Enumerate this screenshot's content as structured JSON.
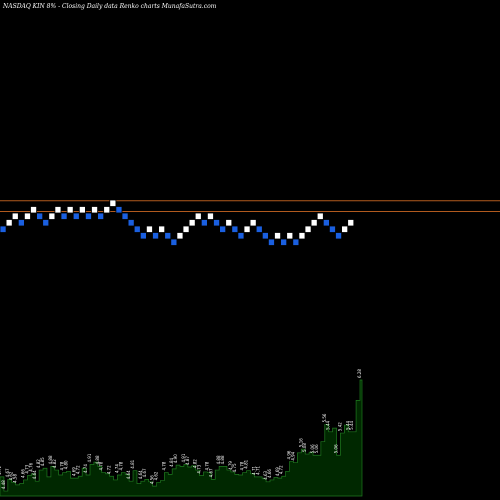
{
  "header": {
    "left": "NASDAQ KIN  8% -",
    "right": "Closing Daily data  Renko  charts MunafaSutra.com"
  },
  "colors": {
    "background": "#000000",
    "up_brick": "#ffffff",
    "down_brick": "#1a5fe0",
    "brick_border": "#000000",
    "reference_line": "#b15a1e",
    "volume_fill": "#002800",
    "volume_stroke": "#1f7a1f"
  },
  "chart_data": [
    {
      "type": "renko",
      "reference_lines": [
        1,
        -0.5
      ],
      "bricks": [
        {
          "dir": "down",
          "level": -2
        },
        {
          "dir": "up",
          "level": -1
        },
        {
          "dir": "up",
          "level": 0
        },
        {
          "dir": "down",
          "level": -1
        },
        {
          "dir": "up",
          "level": 0
        },
        {
          "dir": "up",
          "level": 1
        },
        {
          "dir": "down",
          "level": 0
        },
        {
          "dir": "down",
          "level": -1
        },
        {
          "dir": "up",
          "level": 0
        },
        {
          "dir": "up",
          "level": 1
        },
        {
          "dir": "down",
          "level": 0
        },
        {
          "dir": "up",
          "level": 1
        },
        {
          "dir": "down",
          "level": 0
        },
        {
          "dir": "up",
          "level": 1
        },
        {
          "dir": "down",
          "level": 0
        },
        {
          "dir": "up",
          "level": 1
        },
        {
          "dir": "down",
          "level": 0
        },
        {
          "dir": "up",
          "level": 1
        },
        {
          "dir": "up",
          "level": 2
        },
        {
          "dir": "down",
          "level": 1
        },
        {
          "dir": "down",
          "level": 0
        },
        {
          "dir": "down",
          "level": -1
        },
        {
          "dir": "down",
          "level": -2
        },
        {
          "dir": "down",
          "level": -3
        },
        {
          "dir": "up",
          "level": -2
        },
        {
          "dir": "down",
          "level": -3
        },
        {
          "dir": "up",
          "level": -2
        },
        {
          "dir": "down",
          "level": -3
        },
        {
          "dir": "down",
          "level": -4
        },
        {
          "dir": "up",
          "level": -3
        },
        {
          "dir": "up",
          "level": -2
        },
        {
          "dir": "up",
          "level": -1
        },
        {
          "dir": "up",
          "level": 0
        },
        {
          "dir": "down",
          "level": -1
        },
        {
          "dir": "up",
          "level": 0
        },
        {
          "dir": "down",
          "level": -1
        },
        {
          "dir": "down",
          "level": -2
        },
        {
          "dir": "up",
          "level": -1
        },
        {
          "dir": "down",
          "level": -2
        },
        {
          "dir": "down",
          "level": -3
        },
        {
          "dir": "up",
          "level": -2
        },
        {
          "dir": "up",
          "level": -1
        },
        {
          "dir": "down",
          "level": -2
        },
        {
          "dir": "down",
          "level": -3
        },
        {
          "dir": "down",
          "level": -4
        },
        {
          "dir": "up",
          "level": -3
        },
        {
          "dir": "down",
          "level": -4
        },
        {
          "dir": "up",
          "level": -3
        },
        {
          "dir": "down",
          "level": -4
        },
        {
          "dir": "up",
          "level": -3
        },
        {
          "dir": "up",
          "level": -2
        },
        {
          "dir": "up",
          "level": -1
        },
        {
          "dir": "up",
          "level": 0
        },
        {
          "dir": "down",
          "level": -1
        },
        {
          "dir": "down",
          "level": -2
        },
        {
          "dir": "down",
          "level": -3
        },
        {
          "dir": "up",
          "level": -2
        },
        {
          "dir": "up",
          "level": -1
        }
      ]
    },
    {
      "type": "area",
      "series": [
        {
          "values": [
            4.71,
            4.48,
            4.67,
            4.62,
            4.58,
            4.6,
            4.66,
            4.73,
            4.76,
            4.64,
            4.82,
            4.85,
            4.71,
            4.88,
            4.82,
            4.74,
            4.78,
            4.8,
            4.69,
            4.69,
            4.72,
            4.85,
            4.74,
            4.91,
            4.95,
            4.88,
            4.78,
            4.76,
            4.72,
            4.66,
            4.74,
            4.78,
            4.75,
            4.64,
            4.81,
            4.6,
            4.64,
            4.67,
            4.63,
            4.56,
            4.62,
            4.65,
            4.78,
            4.75,
            4.84,
            4.9,
            4.88,
            4.91,
            4.87,
            4.89,
            4.82,
            4.73,
            4.79,
            4.78,
            4.67,
            4.82,
            4.88,
            4.88,
            4.82,
            4.79,
            4.75,
            4.74,
            4.78,
            4.81,
            4.76,
            4.71,
            4.71,
            4.68,
            4.63,
            4.66,
            4.7,
            4.69,
            4.72,
            4.8,
            4.96,
            4.94,
            5.1,
            5.16,
            5.08,
            5.11,
            5.06,
            5.06,
            5.28,
            5.56,
            5.44,
            5.5,
            5.06,
            5.42,
            5.55,
            5.44,
            5.44,
            5.95,
            6.28
          ],
          "labels": [
            "4.71",
            "4.48",
            "4.67",
            "4.62",
            "4.58",
            "",
            "4.66",
            "4.73",
            "4.76",
            "4.64",
            "4.82",
            "4.85",
            "",
            "4.88",
            "4.82",
            "",
            "4.78",
            "4.80",
            "",
            "4.69",
            "4.72",
            "",
            "4.74",
            "4.91",
            "",
            "4.88",
            "4.78",
            "",
            "4.72",
            "",
            "4.74",
            "4.78",
            "",
            "4.64",
            "4.81",
            "",
            "4.64",
            "4.67",
            "",
            "4.56",
            "4.62",
            "",
            "4.78",
            "",
            "4.84",
            "4.90",
            "",
            "4.91",
            "4.87",
            "",
            "4.82",
            "4.73",
            "",
            "4.78",
            "4.67",
            "",
            "4.88",
            "4.88",
            "",
            "4.79",
            "4.75",
            "",
            "4.78",
            "4.81",
            "",
            "4.71",
            "4.71",
            "",
            "4.63",
            "4.66",
            "",
            "4.69",
            "4.72",
            "",
            "4.96",
            "4.94",
            "",
            "5.16",
            "5.08",
            "",
            "5.06",
            "5.06",
            "",
            "5.56",
            "5.44",
            "",
            "5.06",
            "5.42",
            "",
            "5.44",
            "5.44",
            "",
            "6.28"
          ]
        }
      ]
    }
  ]
}
